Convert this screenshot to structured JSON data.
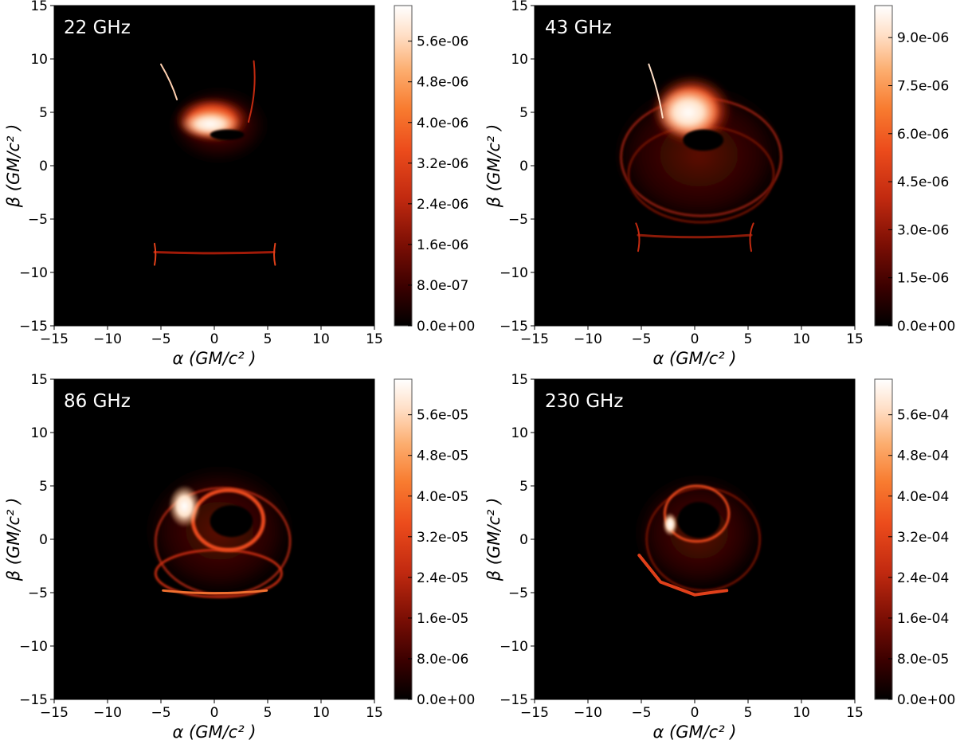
{
  "figure": {
    "description_free": true
  },
  "chart_data": [
    {
      "type": "heatmap",
      "title": "22 GHz",
      "xlabel": "α (GM/c² )",
      "ylabel": "β (GM/c² )",
      "xlim": [
        -15,
        15
      ],
      "ylim": [
        -15,
        15
      ],
      "xticks": [
        "−15",
        "−10",
        "−5",
        "0",
        "5",
        "10",
        "15"
      ],
      "yticks": [
        "15",
        "10",
        "5",
        "0",
        "−5",
        "−10",
        "−15"
      ],
      "colorbar": {
        "range": [
          0,
          6.3e-06
        ],
        "ticks": [
          "5.6e-06",
          "4.8e-06",
          "4.0e-06",
          "3.2e-06",
          "2.4e-06",
          "1.6e-06",
          "8.0e-07",
          "0.0e+00"
        ],
        "tick_values": [
          5.6e-06,
          4.8e-06,
          4e-06,
          3.2e-06,
          2.4e-06,
          1.6e-06,
          8e-07,
          0
        ]
      },
      "colormap": [
        "#000000",
        "#3a0000",
        "#7a0e04",
        "#c22a10",
        "#ec4c1c",
        "#f87c30",
        "#fcae70",
        "#ffe0c8",
        "#ffffff"
      ],
      "grid": false
    },
    {
      "type": "heatmap",
      "title": "43 GHz",
      "xlabel": "α (GM/c² )",
      "ylabel": "β (GM/c² )",
      "xlim": [
        -15,
        15
      ],
      "ylim": [
        -15,
        15
      ],
      "xticks": [
        "−15",
        "−10",
        "−5",
        "0",
        "5",
        "10",
        "15"
      ],
      "yticks": [
        "15",
        "10",
        "5",
        "0",
        "−5",
        "−10",
        "−15"
      ],
      "colorbar": {
        "range": [
          0,
          1e-05
        ],
        "ticks": [
          "9.0e-06",
          "7.5e-06",
          "6.0e-06",
          "4.5e-06",
          "3.0e-06",
          "1.5e-06",
          "0.0e+00"
        ],
        "tick_values": [
          9e-06,
          7.5e-06,
          6e-06,
          4.5e-06,
          3e-06,
          1.5e-06,
          0
        ]
      },
      "colormap": [
        "#000000",
        "#3a0000",
        "#7a0e04",
        "#c22a10",
        "#ec4c1c",
        "#f87c30",
        "#fcae70",
        "#ffe0c8",
        "#ffffff"
      ],
      "grid": false
    },
    {
      "type": "heatmap",
      "title": "86 GHz",
      "xlabel": "α (GM/c² )",
      "ylabel": "β (GM/c² )",
      "xlim": [
        -15,
        15
      ],
      "ylim": [
        -15,
        15
      ],
      "xticks": [
        "−15",
        "−10",
        "−5",
        "0",
        "5",
        "10",
        "15"
      ],
      "yticks": [
        "15",
        "10",
        "5",
        "0",
        "−5",
        "−10",
        "−15"
      ],
      "colorbar": {
        "range": [
          0,
          6.3e-05
        ],
        "ticks": [
          "5.6e-05",
          "4.8e-05",
          "4.0e-05",
          "3.2e-05",
          "2.4e-05",
          "1.6e-05",
          "8.0e-06",
          "0.0e+00"
        ],
        "tick_values": [
          5.6e-05,
          4.8e-05,
          4e-05,
          3.2e-05,
          2.4e-05,
          1.6e-05,
          8e-06,
          0
        ]
      },
      "colormap": [
        "#000000",
        "#3a0000",
        "#7a0e04",
        "#c22a10",
        "#ec4c1c",
        "#f87c30",
        "#fcae70",
        "#ffe0c8",
        "#ffffff"
      ],
      "grid": false
    },
    {
      "type": "heatmap",
      "title": "230 GHz",
      "xlabel": "α (GM/c² )",
      "ylabel": "β (GM/c² )",
      "xlim": [
        -15,
        15
      ],
      "ylim": [
        -15,
        15
      ],
      "xticks": [
        "−15",
        "−10",
        "−5",
        "0",
        "5",
        "10",
        "15"
      ],
      "yticks": [
        "15",
        "10",
        "5",
        "0",
        "−5",
        "−10",
        "−15"
      ],
      "colorbar": {
        "range": [
          0,
          0.00063
        ],
        "ticks": [
          "5.6e-04",
          "4.8e-04",
          "4.0e-04",
          "3.2e-04",
          "2.4e-04",
          "1.6e-04",
          "8.0e-05",
          "0.0e+00"
        ],
        "tick_values": [
          0.00056,
          0.00048,
          0.0004,
          0.00032,
          0.00024,
          0.00016,
          8e-05,
          0
        ]
      },
      "colormap": [
        "#000000",
        "#3a0000",
        "#7a0e04",
        "#c22a10",
        "#ec4c1c",
        "#f87c30",
        "#fcae70",
        "#ffe0c8",
        "#ffffff"
      ],
      "grid": false
    }
  ]
}
